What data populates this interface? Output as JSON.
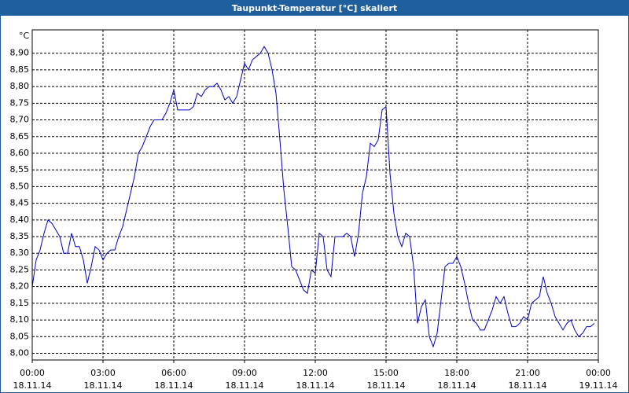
{
  "chart_data": {
    "type": "line",
    "title": "Taupunkt-Temperatur [°C] skaliert",
    "ylabel": "°C",
    "xlim": [
      0,
      1440
    ],
    "ylim": [
      7.98,
      8.97
    ],
    "grid": true,
    "xticks": [
      {
        "value": 0,
        "label": "00:00",
        "date": "18.11.14"
      },
      {
        "value": 180,
        "label": "03:00",
        "date": "18.11.14"
      },
      {
        "value": 360,
        "label": "06:00",
        "date": "18.11.14"
      },
      {
        "value": 540,
        "label": "09:00",
        "date": "18.11.14"
      },
      {
        "value": 720,
        "label": "12:00",
        "date": "18.11.14"
      },
      {
        "value": 900,
        "label": "15:00",
        "date": "18.11.14"
      },
      {
        "value": 1080,
        "label": "18:00",
        "date": "18.11.14"
      },
      {
        "value": 1260,
        "label": "21:00",
        "date": "18.11.14"
      },
      {
        "value": 1440,
        "label": "00:00",
        "date": "19.11.14"
      }
    ],
    "yticks": [
      {
        "value": 8.0,
        "label": "8,00"
      },
      {
        "value": 8.05,
        "label": "8,05"
      },
      {
        "value": 8.1,
        "label": "8,10"
      },
      {
        "value": 8.15,
        "label": "8,15"
      },
      {
        "value": 8.2,
        "label": "8,20"
      },
      {
        "value": 8.25,
        "label": "8,25"
      },
      {
        "value": 8.3,
        "label": "8,30"
      },
      {
        "value": 8.35,
        "label": "8,35"
      },
      {
        "value": 8.4,
        "label": "8,40"
      },
      {
        "value": 8.45,
        "label": "8,45"
      },
      {
        "value": 8.5,
        "label": "8,50"
      },
      {
        "value": 8.55,
        "label": "8,55"
      },
      {
        "value": 8.6,
        "label": "8,60"
      },
      {
        "value": 8.65,
        "label": "8,65"
      },
      {
        "value": 8.7,
        "label": "8,70"
      },
      {
        "value": 8.75,
        "label": "8,75"
      },
      {
        "value": 8.8,
        "label": "8,80"
      },
      {
        "value": 8.85,
        "label": "8,85"
      },
      {
        "value": 8.9,
        "label": "8,90"
      }
    ],
    "x": [
      0,
      10,
      20,
      30,
      40,
      50,
      60,
      70,
      80,
      90,
      100,
      110,
      120,
      130,
      140,
      150,
      160,
      170,
      180,
      190,
      200,
      210,
      220,
      230,
      240,
      250,
      260,
      270,
      280,
      290,
      300,
      310,
      320,
      330,
      340,
      350,
      360,
      370,
      380,
      390,
      400,
      410,
      420,
      430,
      440,
      450,
      460,
      470,
      480,
      490,
      500,
      510,
      520,
      530,
      540,
      550,
      560,
      570,
      580,
      590,
      600,
      610,
      620,
      630,
      640,
      650,
      660,
      670,
      680,
      690,
      700,
      710,
      720,
      730,
      740,
      750,
      760,
      770,
      780,
      790,
      800,
      810,
      820,
      830,
      840,
      850,
      860,
      870,
      880,
      890,
      900,
      910,
      920,
      930,
      940,
      950,
      960,
      970,
      980,
      990,
      1000,
      1010,
      1020,
      1030,
      1040,
      1050,
      1060,
      1070,
      1080,
      1090,
      1100,
      1110,
      1120,
      1130,
      1140,
      1150,
      1160,
      1170,
      1180,
      1190,
      1200,
      1210,
      1220,
      1230,
      1240,
      1250,
      1260,
      1270,
      1280,
      1290,
      1300,
      1310,
      1320,
      1330,
      1340,
      1350,
      1360,
      1370,
      1380,
      1390,
      1400,
      1410,
      1420,
      1430
    ],
    "series": [
      {
        "color": "#0000c8",
        "values": [
          8.2,
          8.28,
          8.31,
          8.36,
          8.4,
          8.39,
          8.37,
          8.35,
          8.3,
          8.3,
          8.36,
          8.32,
          8.32,
          8.28,
          8.21,
          8.26,
          8.32,
          8.31,
          8.28,
          8.3,
          8.31,
          8.31,
          8.35,
          8.38,
          8.43,
          8.48,
          8.53,
          8.6,
          8.62,
          8.65,
          8.68,
          8.7,
          8.7,
          8.7,
          8.72,
          8.75,
          8.79,
          8.73,
          8.73,
          8.73,
          8.73,
          8.74,
          8.78,
          8.77,
          8.79,
          8.8,
          8.8,
          8.81,
          8.79,
          8.76,
          8.77,
          8.75,
          8.77,
          8.82,
          8.87,
          8.85,
          8.88,
          8.89,
          8.9,
          8.92,
          8.9,
          8.85,
          8.78,
          8.64,
          8.49,
          8.38,
          8.26,
          8.25,
          8.22,
          8.19,
          8.18,
          8.25,
          8.24,
          8.36,
          8.35,
          8.25,
          8.23,
          8.35,
          8.35,
          8.35,
          8.36,
          8.35,
          8.29,
          8.36,
          8.48,
          8.53,
          8.63,
          8.62,
          8.64,
          8.73,
          8.74,
          8.54,
          8.42,
          8.35,
          8.32,
          8.36,
          8.35,
          8.26,
          8.09,
          8.14,
          8.16,
          8.05,
          8.02,
          8.06,
          8.16,
          8.26,
          8.27,
          8.27,
          8.29,
          8.26,
          8.21,
          8.15,
          8.1,
          8.09,
          8.07,
          8.07,
          8.1,
          8.13,
          8.17,
          8.15,
          8.17,
          8.12,
          8.08,
          8.08,
          8.09,
          8.11,
          8.1,
          8.15,
          8.16,
          8.17,
          8.23,
          8.18,
          8.15,
          8.11,
          8.09,
          8.07,
          8.09,
          8.1,
          8.07,
          8.05,
          8.06,
          8.08,
          8.08,
          8.09
        ]
      }
    ]
  }
}
